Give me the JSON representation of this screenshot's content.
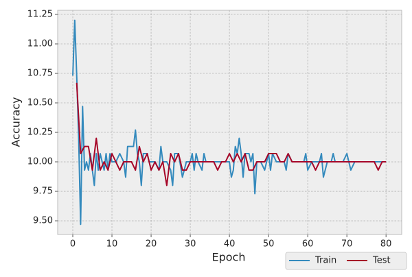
{
  "chart_data": {
    "type": "line",
    "xlabel": "Epoch",
    "ylabel": "Accuracy",
    "xlim": [
      -3.86,
      84
    ],
    "ylim": [
      9.384,
      11.285
    ],
    "xticks": [
      0,
      10,
      20,
      30,
      40,
      50,
      60,
      70,
      80
    ],
    "yticks": [
      {
        "value": 9.5,
        "label": "9.50"
      },
      {
        "value": 9.75,
        "label": "9.75"
      },
      {
        "value": 10,
        "label": "10.00"
      },
      {
        "value": 10.25,
        "label": "10.25"
      },
      {
        "value": 10.5,
        "label": "10.50"
      },
      {
        "value": 10.75,
        "label": "10.75"
      },
      {
        "value": 11,
        "label": "11.00"
      },
      {
        "value": 11.25,
        "label": "11.25"
      }
    ],
    "grid": true,
    "legend": "below-right",
    "series": [
      {
        "name": "Train",
        "color": "#348abd",
        "x": [
          0,
          0.5,
          1,
          1.5,
          2,
          2.5,
          3,
          3.5,
          4,
          4.5,
          5,
          5.5,
          6,
          6.5,
          7,
          7.5,
          8,
          8.5,
          9,
          9.5,
          10,
          11,
          12,
          13,
          13.5,
          14,
          15,
          15.5,
          16,
          16.5,
          17,
          17.5,
          18,
          19,
          19.5,
          20,
          21,
          22,
          22.5,
          23,
          24,
          25,
          25.5,
          26,
          27,
          28,
          29,
          30,
          30.5,
          31,
          31.5,
          32,
          33,
          33.5,
          34,
          40,
          40.5,
          41,
          41.5,
          42,
          42.5,
          43,
          43.5,
          44,
          45,
          45.5,
          46,
          46.5,
          47,
          48,
          49,
          49.5,
          50,
          50.5,
          51,
          52,
          53,
          54,
          54.5,
          55,
          56,
          59,
          59.5,
          60,
          61,
          63,
          63.5,
          64,
          65,
          66,
          66.5,
          67,
          69,
          70,
          71,
          72,
          80
        ],
        "values": [
          10.73,
          11.2,
          10.73,
          10.2,
          9.47,
          10.47,
          9.93,
          10.0,
          9.93,
          10.07,
          9.93,
          9.8,
          10.07,
          9.93,
          10.07,
          10.0,
          9.93,
          10.07,
          9.93,
          10.07,
          10.0,
          10.0,
          10.07,
          10.0,
          9.87,
          10.13,
          10.13,
          10.13,
          10.27,
          10.07,
          10.0,
          9.8,
          10.07,
          10.07,
          10.0,
          10.0,
          10.0,
          9.93,
          10.13,
          10.0,
          10.0,
          9.93,
          9.8,
          10.07,
          10.07,
          9.87,
          10.0,
          10.0,
          10.07,
          9.93,
          10.07,
          10.0,
          9.93,
          10.07,
          10.0,
          10.0,
          9.87,
          9.93,
          10.13,
          10.07,
          10.2,
          10.07,
          9.87,
          10.07,
          10.07,
          10.0,
          10.07,
          9.73,
          10.0,
          10.0,
          9.93,
          10.0,
          10.07,
          9.93,
          10.07,
          10.0,
          10.0,
          10.0,
          9.93,
          10.07,
          10.0,
          10.0,
          10.07,
          9.93,
          10.0,
          10.0,
          10.07,
          9.87,
          10.0,
          10.0,
          10.07,
          10.0,
          10.0,
          10.07,
          9.93,
          10.0,
          10.0
        ]
      },
      {
        "name": "Test",
        "color": "#a60628",
        "x": [
          1,
          2,
          3,
          4,
          5,
          6,
          7,
          8,
          9,
          10,
          11,
          12,
          13,
          14,
          15,
          16,
          17,
          18,
          19,
          20,
          21,
          22,
          23,
          24,
          25,
          26,
          27,
          28,
          29,
          30,
          31,
          32,
          33,
          34,
          35,
          36,
          37,
          38,
          39,
          40,
          41,
          42,
          43,
          44,
          45,
          46,
          47,
          48,
          49,
          50,
          51,
          52,
          53,
          54,
          55,
          56,
          57,
          58,
          59,
          60,
          61,
          62,
          63,
          64,
          65,
          66,
          67,
          68,
          69,
          70,
          71,
          72,
          73,
          74,
          75,
          76,
          77,
          78,
          79,
          80
        ],
        "values": [
          10.67,
          10.07,
          10.13,
          10.13,
          9.93,
          10.2,
          9.93,
          10.0,
          9.93,
          10.07,
          10.0,
          9.93,
          10.0,
          10.0,
          10.0,
          9.93,
          10.13,
          10.0,
          10.07,
          9.93,
          10.0,
          9.93,
          10.0,
          9.8,
          10.07,
          10.0,
          10.07,
          9.93,
          9.93,
          10.0,
          10.0,
          10.0,
          10.0,
          10.0,
          10.0,
          10.0,
          9.93,
          10.0,
          10.0,
          10.07,
          10.0,
          10.07,
          10.0,
          10.07,
          9.93,
          9.93,
          10.0,
          10.0,
          10.0,
          10.07,
          10.07,
          10.07,
          10.0,
          10.0,
          10.07,
          10.0,
          10.0,
          10.0,
          10.0,
          10.0,
          10.0,
          9.93,
          10.0,
          10.0,
          10.0,
          10.0,
          10.0,
          10.0,
          10.0,
          10.0,
          10.0,
          10.0,
          10.0,
          10.0,
          10.0,
          10.0,
          10.0,
          9.93,
          10.0,
          10.0
        ]
      }
    ]
  }
}
